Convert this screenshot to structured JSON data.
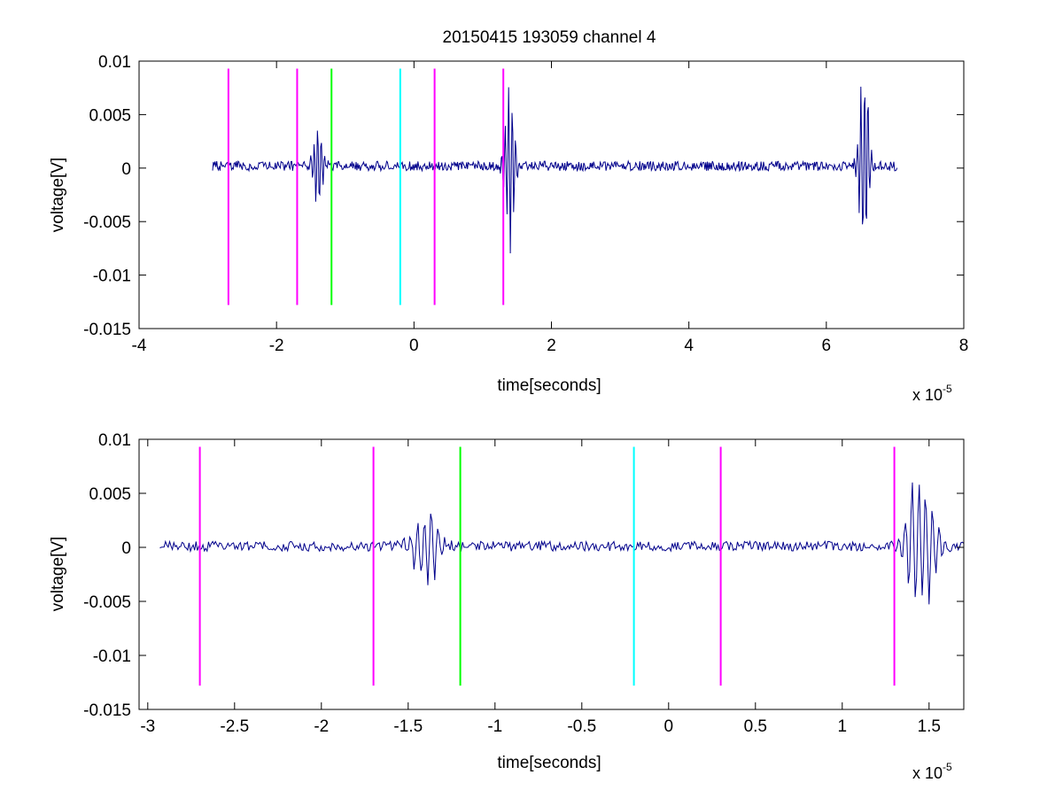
{
  "figure": {
    "title": "20150415 193059 channel 4"
  },
  "chart_data": [
    {
      "type": "line",
      "xlabel": "time[seconds]",
      "ylabel": "voltage[V]",
      "x_multiplier_label": {
        "base": "x 10",
        "exponent": "-5"
      },
      "xlim": [
        -4,
        8
      ],
      "ylim": [
        -0.015,
        0.01
      ],
      "xticks": [
        -4,
        -2,
        0,
        2,
        4,
        6,
        8
      ],
      "xtick_labels": [
        "-4",
        "-2",
        "0",
        "2",
        "4",
        "6",
        "8"
      ],
      "yticks": [
        -0.015,
        -0.01,
        -0.005,
        0,
        0.005,
        0.01
      ],
      "ytick_labels": [
        "-0.015",
        "-0.01",
        "-0.005",
        "0",
        "0.005",
        "0.01"
      ],
      "grid": false,
      "signal": {
        "color": "#00008b",
        "x_range": [
          -2.93,
          7.03
        ],
        "baseline": 0.0002,
        "bursts": [
          {
            "center": -1.4,
            "amplitude": 0.0045
          },
          {
            "center": 1.4,
            "amplitude": 0.0095
          },
          {
            "center": 6.55,
            "amplitude": 0.0115
          }
        ]
      },
      "markers": [
        {
          "x": -2.7,
          "color": "#ff00ff"
        },
        {
          "x": -1.7,
          "color": "#ff00ff"
        },
        {
          "x": -1.2,
          "color": "#00ff00"
        },
        {
          "x": -0.2,
          "color": "#00ffff"
        },
        {
          "x": 0.3,
          "color": "#ff00ff"
        },
        {
          "x": 1.3,
          "color": "#ff00ff"
        }
      ],
      "marker_yrange": [
        -0.0128,
        0.0093
      ]
    },
    {
      "type": "line",
      "xlabel": "time[seconds]",
      "ylabel": "voltage[V]",
      "x_multiplier_label": {
        "base": "x 10",
        "exponent": "-5"
      },
      "xlim": [
        -3.05,
        1.7
      ],
      "ylim": [
        -0.015,
        0.01
      ],
      "xticks": [
        -3,
        -2.5,
        -2,
        -1.5,
        -1,
        -0.5,
        0,
        0.5,
        1,
        1.5
      ],
      "xtick_labels": [
        "-3",
        "-2.5",
        "-2",
        "-1.5",
        "-1",
        "-0.5",
        "0",
        "0.5",
        "1",
        "1.5"
      ],
      "yticks": [
        -0.015,
        -0.01,
        -0.005,
        0,
        0.005,
        0.01
      ],
      "ytick_labels": [
        "-0.015",
        "-0.01",
        "-0.005",
        "0",
        "0.005",
        "0.01"
      ],
      "grid": false,
      "signal": {
        "color": "#00008b",
        "x_range": [
          -2.93,
          1.7
        ],
        "baseline": 0.0001,
        "bursts": [
          {
            "center": -1.4,
            "amplitude": 0.0043
          },
          {
            "center": 1.45,
            "amplitude": 0.0085
          }
        ]
      },
      "markers": [
        {
          "x": -2.7,
          "color": "#ff00ff"
        },
        {
          "x": -1.7,
          "color": "#ff00ff"
        },
        {
          "x": -1.2,
          "color": "#00ff00"
        },
        {
          "x": -0.2,
          "color": "#00ffff"
        },
        {
          "x": 0.3,
          "color": "#ff00ff"
        },
        {
          "x": 1.3,
          "color": "#ff00ff"
        }
      ],
      "marker_yrange": [
        -0.0128,
        0.0093
      ]
    }
  ]
}
